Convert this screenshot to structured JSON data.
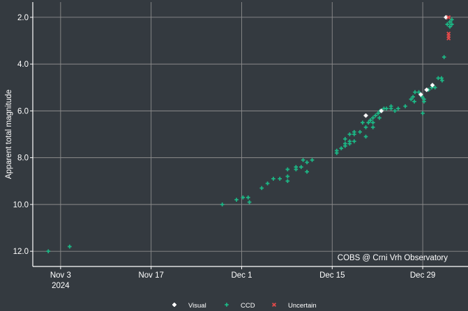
{
  "colors": {
    "background": "#343a40",
    "grid": "#8c8c8c",
    "axis": "#ffffff",
    "text": "#ffffff",
    "visual": "#ffffff",
    "ccd": "#1db584",
    "uncertain": "#e34a4a"
  },
  "chart_data": {
    "type": "scatter",
    "ylabel": "Apparent total magnitude",
    "annotation": "COBS @ Crni Vrh Observatory",
    "x_ticks": [
      {
        "value": 3,
        "label": "Nov 3",
        "sublabel": "2024"
      },
      {
        "value": 17,
        "label": "Nov 17",
        "sublabel": ""
      },
      {
        "value": 31,
        "label": "Dec 1",
        "sublabel": ""
      },
      {
        "value": 45,
        "label": "Dec 15",
        "sublabel": ""
      },
      {
        "value": 59,
        "label": "Dec 29",
        "sublabel": ""
      }
    ],
    "y_ticks": [
      2.0,
      4.0,
      6.0,
      8.0,
      10.0,
      12.0
    ],
    "xlim": [
      -1.3,
      66
    ],
    "ylim": [
      12.65,
      1.35
    ],
    "y_inverted": true,
    "legend_position": "bottom",
    "series": [
      {
        "name": "Visual",
        "marker": "star",
        "points": [
          [
            50.2,
            6.2
          ],
          [
            52.6,
            6.0
          ],
          [
            58.7,
            5.3
          ],
          [
            59.6,
            5.1
          ],
          [
            60.5,
            4.9
          ],
          [
            62.6,
            2.0
          ]
        ]
      },
      {
        "name": "CCD",
        "marker": "diamond",
        "points": [
          [
            1.1,
            12.0
          ],
          [
            4.4,
            11.8
          ],
          [
            28.0,
            10.0
          ],
          [
            30.2,
            9.8
          ],
          [
            31.2,
            9.7
          ],
          [
            32.0,
            9.7
          ],
          [
            32.2,
            9.9
          ],
          [
            34.1,
            9.3
          ],
          [
            35.0,
            9.1
          ],
          [
            35.9,
            8.9
          ],
          [
            36.9,
            8.9
          ],
          [
            38.1,
            8.8
          ],
          [
            38.1,
            9.0
          ],
          [
            38.1,
            8.5
          ],
          [
            39.4,
            8.4
          ],
          [
            39.4,
            8.5
          ],
          [
            40.2,
            8.4
          ],
          [
            40.5,
            8.1
          ],
          [
            41.1,
            8.2
          ],
          [
            41.1,
            8.6
          ],
          [
            41.9,
            8.1
          ],
          [
            45.7,
            7.7
          ],
          [
            45.7,
            7.8
          ],
          [
            46.4,
            7.6
          ],
          [
            47.0,
            7.5
          ],
          [
            47.0,
            7.2
          ],
          [
            47.0,
            7.4
          ],
          [
            47.7,
            7.0
          ],
          [
            47.7,
            7.3
          ],
          [
            47.7,
            7.4
          ],
          [
            48.4,
            6.9
          ],
          [
            48.4,
            7.3
          ],
          [
            48.4,
            7.0
          ],
          [
            49.3,
            6.9
          ],
          [
            49.7,
            6.5
          ],
          [
            50.2,
            7.1
          ],
          [
            50.2,
            6.7
          ],
          [
            50.6,
            6.5
          ],
          [
            50.9,
            6.4
          ],
          [
            51.3,
            6.3
          ],
          [
            51.3,
            6.7
          ],
          [
            51.3,
            6.5
          ],
          [
            51.7,
            6.2
          ],
          [
            52.1,
            6.1
          ],
          [
            52.3,
            6.3
          ],
          [
            52.4,
            6.0
          ],
          [
            53.0,
            5.9
          ],
          [
            53.4,
            5.9
          ],
          [
            54.1,
            5.8
          ],
          [
            54.1,
            5.9
          ],
          [
            54.7,
            6.0
          ],
          [
            55.2,
            5.9
          ],
          [
            56.3,
            5.8
          ],
          [
            57.2,
            5.5
          ],
          [
            57.5,
            5.4
          ],
          [
            57.7,
            5.6
          ],
          [
            58.4,
            5.2
          ],
          [
            58.9,
            5.4
          ],
          [
            59.2,
            5.5
          ],
          [
            59.2,
            5.6
          ],
          [
            59.9,
            5.1
          ],
          [
            60.4,
            5.0
          ],
          [
            60.9,
            5.0
          ],
          [
            61.4,
            4.6
          ],
          [
            61.9,
            4.6
          ],
          [
            62.0,
            4.7
          ],
          [
            62.3,
            3.7
          ],
          [
            62.8,
            2.3
          ],
          [
            63.2,
            2.4
          ],
          [
            63.2,
            2.2
          ],
          [
            63.5,
            2.1
          ],
          [
            63.5,
            2.3
          ],
          [
            57.8,
            5.2
          ],
          [
            59.0,
            6.1
          ]
        ]
      },
      {
        "name": "Uncertain",
        "marker": "x",
        "points": [
          [
            63.0,
            2.0
          ],
          [
            63.0,
            2.7
          ],
          [
            63.0,
            2.8
          ],
          [
            63.0,
            2.9
          ]
        ]
      }
    ]
  }
}
